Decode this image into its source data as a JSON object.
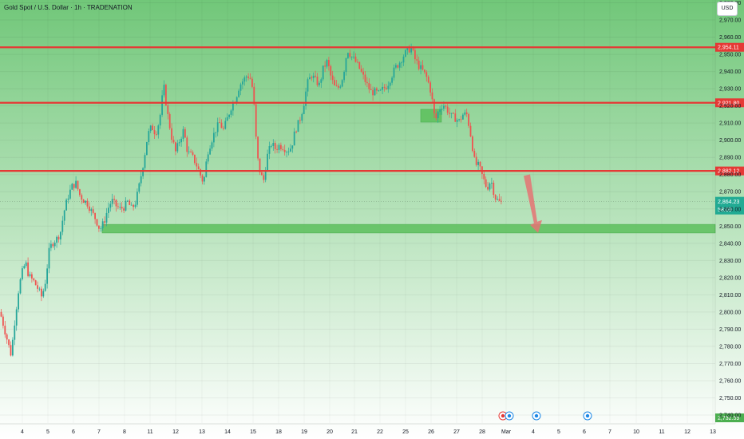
{
  "header": {
    "title": "Gold Spot / U.S. Dollar · 1h · TRADENATION",
    "currency": "USD"
  },
  "colors": {
    "background_top": "#71c779",
    "background_bottom": "#ffffff",
    "resistance_line": "#e53935",
    "support_zone": "#5cbf5c",
    "candle_up": "#26a69a",
    "candle_down": "#ef5350",
    "arrow": "#e57373",
    "last_price_label": "#22ab94",
    "badge_red": "#e53935",
    "badge_green": "#4caf50"
  },
  "chart_data": {
    "type": "candlestick",
    "title": "Gold Spot / U.S. Dollar · 1h · TRADENATION",
    "y_axis_label": "USD",
    "ylim": [
      2725,
      2990
    ],
    "price_ticks": [
      2980,
      2970,
      2960,
      2950,
      2940,
      2930,
      2920,
      2910,
      2900,
      2890,
      2880,
      2870,
      2860,
      2850,
      2840,
      2830,
      2820,
      2810,
      2800,
      2790,
      2780,
      2770,
      2760,
      2750,
      2740
    ],
    "price_tick_labels": [
      "2,980.00",
      "2,970.00",
      "2,960.00",
      "2,950.00",
      "2,940.00",
      "2,930.00",
      "2,920.00",
      "2,910.00",
      "2,900.00",
      "2,890.00",
      "2,880.00",
      "2,870.00",
      "2,860.00",
      "2,850.00",
      "2,840.00",
      "2,830.00",
      "2,820.00",
      "2,810.00",
      "2,800.00",
      "2,790.00",
      "2,780.00",
      "2,770.00",
      "2,760.00",
      "2,750.00",
      "2,740.00"
    ],
    "x_tick_labels": [
      "4",
      "5",
      "6",
      "7",
      "8",
      "11",
      "12",
      "13",
      "14",
      "15",
      "18",
      "19",
      "20",
      "21",
      "22",
      "25",
      "26",
      "27",
      "28",
      "Mar",
      "4",
      "5",
      "6",
      "7",
      "10",
      "11",
      "12",
      "13"
    ],
    "grid": true,
    "levels": [
      {
        "price": 2954.11,
        "label": "2,954.11",
        "type": "resistance"
      },
      {
        "price": 2921.8,
        "label": "2,921.80",
        "type": "resistance"
      },
      {
        "price": 2882.12,
        "label": "2,882.12",
        "type": "resistance"
      }
    ],
    "support_zone": {
      "low": 2846,
      "high": 2851
    },
    "last_price": 2864.23,
    "last_price_label": "2,864.23",
    "countdown": "58:09",
    "bottom_badge": "2,732.59",
    "projection": {
      "from": 2882,
      "to": 2847
    },
    "price_path": [
      [
        0,
        2800
      ],
      [
        4,
        2793
      ],
      [
        10,
        2782
      ],
      [
        14,
        2775
      ],
      [
        18,
        2793
      ],
      [
        23,
        2812
      ],
      [
        27,
        2822
      ],
      [
        32,
        2829
      ],
      [
        36,
        2821
      ],
      [
        42,
        2818
      ],
      [
        47,
        2814
      ],
      [
        52,
        2809
      ],
      [
        56,
        2815
      ],
      [
        62,
        2837
      ],
      [
        67,
        2841
      ],
      [
        72,
        2843
      ],
      [
        76,
        2847
      ],
      [
        80,
        2858
      ],
      [
        85,
        2867
      ],
      [
        90,
        2873
      ],
      [
        95,
        2875
      ],
      [
        100,
        2868
      ],
      [
        105,
        2865
      ],
      [
        110,
        2863
      ],
      [
        115,
        2858
      ],
      [
        120,
        2854
      ],
      [
        125,
        2848
      ],
      [
        130,
        2852
      ],
      [
        135,
        2860
      ],
      [
        140,
        2865
      ],
      [
        145,
        2862
      ],
      [
        150,
        2860
      ],
      [
        155,
        2861
      ],
      [
        160,
        2864
      ],
      [
        165,
        2860
      ],
      [
        170,
        2864
      ],
      [
        175,
        2875
      ],
      [
        180,
        2888
      ],
      [
        185,
        2903
      ],
      [
        190,
        2908
      ],
      [
        195,
        2904
      ],
      [
        200,
        2912
      ],
      [
        205,
        2932
      ],
      [
        210,
        2915
      ],
      [
        215,
        2902
      ],
      [
        220,
        2893
      ],
      [
        225,
        2900
      ],
      [
        230,
        2906
      ],
      [
        235,
        2893
      ],
      [
        240,
        2891
      ],
      [
        245,
        2887
      ],
      [
        250,
        2881
      ],
      [
        255,
        2875
      ],
      [
        260,
        2893
      ],
      [
        265,
        2900
      ],
      [
        270,
        2906
      ],
      [
        275,
        2910
      ],
      [
        280,
        2906
      ],
      [
        285,
        2913
      ],
      [
        290,
        2920
      ],
      [
        295,
        2924
      ],
      [
        300,
        2932
      ],
      [
        305,
        2935
      ],
      [
        310,
        2938
      ],
      [
        315,
        2935
      ],
      [
        318,
        2922
      ],
      [
        322,
        2891
      ],
      [
        326,
        2881
      ],
      [
        330,
        2876
      ],
      [
        335,
        2891
      ],
      [
        340,
        2898
      ],
      [
        345,
        2895
      ],
      [
        350,
        2897
      ],
      [
        355,
        2896
      ],
      [
        360,
        2894
      ],
      [
        365,
        2896
      ],
      [
        370,
        2906
      ],
      [
        375,
        2911
      ],
      [
        380,
        2920
      ],
      [
        385,
        2933
      ],
      [
        390,
        2938
      ],
      [
        395,
        2935
      ],
      [
        400,
        2932
      ],
      [
        405,
        2942
      ],
      [
        410,
        2946
      ],
      [
        415,
        2936
      ],
      [
        420,
        2930
      ],
      [
        425,
        2931
      ],
      [
        430,
        2938
      ],
      [
        435,
        2953
      ],
      [
        440,
        2949
      ],
      [
        445,
        2946
      ],
      [
        450,
        2942
      ],
      [
        455,
        2937
      ],
      [
        460,
        2932
      ],
      [
        465,
        2928
      ],
      [
        470,
        2928
      ],
      [
        475,
        2927
      ],
      [
        480,
        2930
      ],
      [
        485,
        2932
      ],
      [
        490,
        2937
      ],
      [
        495,
        2942
      ],
      [
        500,
        2945
      ],
      [
        505,
        2949
      ],
      [
        510,
        2952
      ],
      [
        515,
        2954
      ],
      [
        520,
        2947
      ],
      [
        525,
        2943
      ],
      [
        530,
        2940
      ],
      [
        535,
        2936
      ],
      [
        540,
        2928
      ],
      [
        545,
        2911
      ],
      [
        550,
        2918
      ],
      [
        555,
        2921
      ],
      [
        560,
        2918
      ],
      [
        565,
        2914
      ],
      [
        570,
        2913
      ],
      [
        575,
        2911
      ],
      [
        580,
        2915
      ],
      [
        585,
        2915
      ],
      [
        590,
        2902
      ],
      [
        595,
        2886
      ],
      [
        600,
        2885
      ],
      [
        605,
        2878
      ],
      [
        610,
        2872
      ],
      [
        615,
        2877
      ],
      [
        620,
        2867
      ],
      [
        625,
        2864
      ],
      [
        628,
        2864
      ]
    ]
  }
}
